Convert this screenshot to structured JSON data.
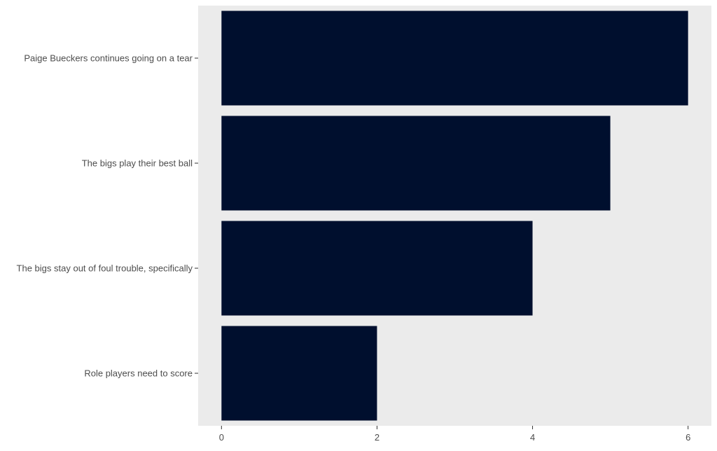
{
  "chart_data": {
    "type": "bar",
    "orientation": "horizontal",
    "categories": [
      "Paige Bueckers continues going on a tear",
      "The bigs play their best ball",
      "The bigs stay out of foul trouble, specifically",
      "Role players need to score"
    ],
    "values": [
      6,
      5,
      4,
      2
    ],
    "title": "",
    "xlabel": "",
    "ylabel": "",
    "xlim": [
      -0.3,
      6.3
    ],
    "x_ticks": [
      "0",
      "2",
      "4",
      "6"
    ],
    "grid": false,
    "legend": "none",
    "colors": {
      "bar": "#000f2e",
      "panel": "#ebebeb",
      "text": "#4d4d4d",
      "tick": "#333333"
    }
  }
}
